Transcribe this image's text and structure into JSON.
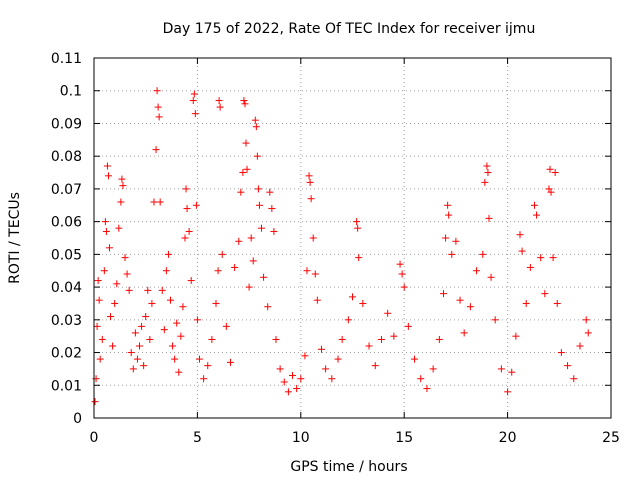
{
  "chart_data": {
    "type": "scatter",
    "title": "Day 175 of 2022, Rate Of TEC Index for receiver ijmu",
    "xlabel": "GPS time / hours",
    "ylabel": "ROTI / TECUs",
    "xlim": [
      0,
      25
    ],
    "ylim": [
      0,
      0.11
    ],
    "xticks": [
      "0",
      "5",
      "10",
      "15",
      "20",
      "25"
    ],
    "yticks": [
      "0",
      "0.01",
      "0.02",
      "0.03",
      "0.04",
      "0.05",
      "0.06",
      "0.07",
      "0.08",
      "0.09",
      "0.1",
      "0.11"
    ],
    "xtick_values": [
      0,
      5,
      10,
      15,
      20,
      25
    ],
    "ytick_values": [
      0,
      0.01,
      0.02,
      0.03,
      0.04,
      0.05,
      0.06,
      0.07,
      0.08,
      0.09,
      0.1,
      0.11
    ],
    "grid": true,
    "marker": "plus",
    "color": "#ff0000",
    "series": [
      {
        "name": "ROTI",
        "points": [
          [
            0.05,
            0.005
          ],
          [
            0.1,
            0.012
          ],
          [
            0.15,
            0.028
          ],
          [
            0.2,
            0.042
          ],
          [
            0.25,
            0.036
          ],
          [
            0.3,
            0.018
          ],
          [
            0.4,
            0.024
          ],
          [
            0.5,
            0.045
          ],
          [
            0.55,
            0.06
          ],
          [
            0.6,
            0.057
          ],
          [
            0.65,
            0.077
          ],
          [
            0.7,
            0.074
          ],
          [
            0.75,
            0.052
          ],
          [
            0.8,
            0.031
          ],
          [
            0.9,
            0.022
          ],
          [
            1.0,
            0.035
          ],
          [
            1.1,
            0.041
          ],
          [
            1.2,
            0.058
          ],
          [
            1.3,
            0.066
          ],
          [
            1.35,
            0.073
          ],
          [
            1.4,
            0.071
          ],
          [
            1.5,
            0.049
          ],
          [
            1.6,
            0.044
          ],
          [
            1.7,
            0.039
          ],
          [
            1.8,
            0.02
          ],
          [
            1.9,
            0.015
          ],
          [
            2.0,
            0.026
          ],
          [
            2.1,
            0.018
          ],
          [
            2.2,
            0.022
          ],
          [
            2.3,
            0.028
          ],
          [
            2.4,
            0.016
          ],
          [
            2.5,
            0.031
          ],
          [
            2.6,
            0.039
          ],
          [
            2.7,
            0.024
          ],
          [
            2.8,
            0.035
          ],
          [
            2.9,
            0.066
          ],
          [
            3.0,
            0.082
          ],
          [
            3.05,
            0.1
          ],
          [
            3.1,
            0.095
          ],
          [
            3.15,
            0.092
          ],
          [
            3.2,
            0.066
          ],
          [
            3.3,
            0.039
          ],
          [
            3.4,
            0.027
          ],
          [
            3.5,
            0.045
          ],
          [
            3.6,
            0.05
          ],
          [
            3.7,
            0.036
          ],
          [
            3.8,
            0.022
          ],
          [
            3.9,
            0.018
          ],
          [
            4.0,
            0.029
          ],
          [
            4.1,
            0.014
          ],
          [
            4.2,
            0.025
          ],
          [
            4.3,
            0.034
          ],
          [
            4.4,
            0.055
          ],
          [
            4.45,
            0.07
          ],
          [
            4.5,
            0.064
          ],
          [
            4.6,
            0.057
          ],
          [
            4.7,
            0.042
          ],
          [
            4.8,
            0.097
          ],
          [
            4.85,
            0.099
          ],
          [
            4.9,
            0.093
          ],
          [
            4.95,
            0.065
          ],
          [
            5.0,
            0.03
          ],
          [
            5.1,
            0.018
          ],
          [
            5.3,
            0.012
          ],
          [
            5.5,
            0.016
          ],
          [
            5.7,
            0.024
          ],
          [
            5.9,
            0.035
          ],
          [
            6.0,
            0.045
          ],
          [
            6.05,
            0.097
          ],
          [
            6.1,
            0.095
          ],
          [
            6.2,
            0.05
          ],
          [
            6.4,
            0.028
          ],
          [
            6.6,
            0.017
          ],
          [
            6.8,
            0.046
          ],
          [
            7.0,
            0.054
          ],
          [
            7.1,
            0.069
          ],
          [
            7.2,
            0.075
          ],
          [
            7.25,
            0.097
          ],
          [
            7.3,
            0.096
          ],
          [
            7.35,
            0.084
          ],
          [
            7.4,
            0.076
          ],
          [
            7.5,
            0.04
          ],
          [
            7.6,
            0.055
          ],
          [
            7.7,
            0.048
          ],
          [
            7.8,
            0.091
          ],
          [
            7.85,
            0.089
          ],
          [
            7.9,
            0.08
          ],
          [
            7.95,
            0.07
          ],
          [
            8.0,
            0.065
          ],
          [
            8.1,
            0.058
          ],
          [
            8.2,
            0.043
          ],
          [
            8.4,
            0.034
          ],
          [
            8.5,
            0.069
          ],
          [
            8.6,
            0.064
          ],
          [
            8.7,
            0.057
          ],
          [
            8.8,
            0.024
          ],
          [
            9.0,
            0.015
          ],
          [
            9.2,
            0.011
          ],
          [
            9.4,
            0.008
          ],
          [
            9.6,
            0.013
          ],
          [
            9.8,
            0.009
          ],
          [
            10.0,
            0.012
          ],
          [
            10.2,
            0.019
          ],
          [
            10.3,
            0.045
          ],
          [
            10.4,
            0.074
          ],
          [
            10.45,
            0.072
          ],
          [
            10.5,
            0.067
          ],
          [
            10.6,
            0.055
          ],
          [
            10.7,
            0.044
          ],
          [
            10.8,
            0.036
          ],
          [
            11.0,
            0.021
          ],
          [
            11.2,
            0.015
          ],
          [
            11.5,
            0.012
          ],
          [
            11.8,
            0.018
          ],
          [
            12.0,
            0.024
          ],
          [
            12.3,
            0.03
          ],
          [
            12.5,
            0.037
          ],
          [
            12.7,
            0.06
          ],
          [
            12.75,
            0.058
          ],
          [
            12.8,
            0.049
          ],
          [
            13.0,
            0.035
          ],
          [
            13.3,
            0.022
          ],
          [
            13.6,
            0.016
          ],
          [
            13.9,
            0.024
          ],
          [
            14.2,
            0.032
          ],
          [
            14.5,
            0.025
          ],
          [
            14.8,
            0.047
          ],
          [
            14.9,
            0.044
          ],
          [
            15.0,
            0.04
          ],
          [
            15.2,
            0.028
          ],
          [
            15.5,
            0.018
          ],
          [
            15.8,
            0.012
          ],
          [
            16.1,
            0.009
          ],
          [
            16.4,
            0.015
          ],
          [
            16.7,
            0.024
          ],
          [
            16.9,
            0.038
          ],
          [
            17.0,
            0.055
          ],
          [
            17.1,
            0.065
          ],
          [
            17.15,
            0.062
          ],
          [
            17.3,
            0.05
          ],
          [
            17.5,
            0.054
          ],
          [
            17.7,
            0.036
          ],
          [
            17.9,
            0.026
          ],
          [
            18.2,
            0.034
          ],
          [
            18.5,
            0.045
          ],
          [
            18.8,
            0.05
          ],
          [
            18.9,
            0.072
          ],
          [
            19.0,
            0.077
          ],
          [
            19.05,
            0.075
          ],
          [
            19.1,
            0.061
          ],
          [
            19.2,
            0.043
          ],
          [
            19.4,
            0.03
          ],
          [
            19.7,
            0.015
          ],
          [
            20.0,
            0.008
          ],
          [
            20.2,
            0.014
          ],
          [
            20.4,
            0.025
          ],
          [
            20.6,
            0.056
          ],
          [
            20.7,
            0.051
          ],
          [
            20.9,
            0.035
          ],
          [
            21.1,
            0.046
          ],
          [
            21.3,
            0.065
          ],
          [
            21.4,
            0.062
          ],
          [
            21.6,
            0.049
          ],
          [
            21.8,
            0.038
          ],
          [
            22.0,
            0.07
          ],
          [
            22.05,
            0.076
          ],
          [
            22.1,
            0.069
          ],
          [
            22.2,
            0.049
          ],
          [
            22.3,
            0.075
          ],
          [
            22.4,
            0.035
          ],
          [
            22.6,
            0.02
          ],
          [
            22.9,
            0.016
          ],
          [
            23.2,
            0.012
          ],
          [
            23.5,
            0.022
          ],
          [
            23.8,
            0.03
          ],
          [
            23.9,
            0.026
          ]
        ]
      }
    ]
  }
}
